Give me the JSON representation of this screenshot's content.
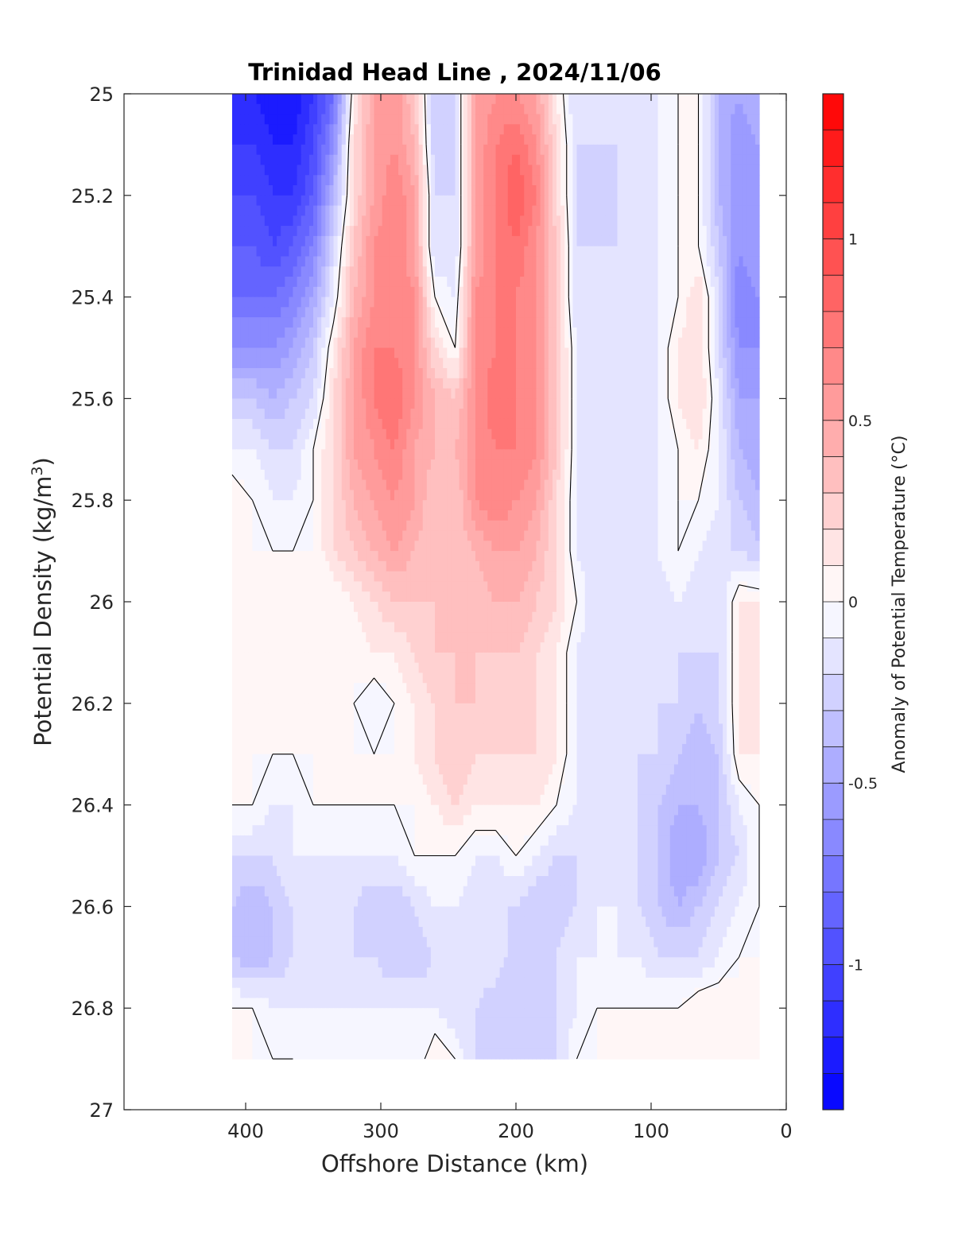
{
  "chart_data": {
    "type": "heatmap",
    "title": "Trinidad Head Line , 2024/11/06",
    "xlabel": "Offshore Distance (km)",
    "ylabel_main": "Potential Density (kg/m",
    "ylabel_sup": "3",
    "ylabel_close": ")",
    "colorbar_label": "Anomaly of Potential Temperature (°C)",
    "xlim": [
      490,
      0
    ],
    "ylim": [
      25,
      27
    ],
    "y_reversed": true,
    "x_ticks": [
      400,
      300,
      200,
      100,
      0
    ],
    "x_tick_labels": [
      "400",
      "300",
      "200",
      "100",
      "0"
    ],
    "y_ticks": [
      25,
      25.2,
      25.4,
      25.6,
      25.8,
      26,
      26.2,
      26.4,
      26.6,
      26.8,
      27
    ],
    "y_tick_labels": [
      "25",
      "25.2",
      "25.4",
      "25.6",
      "25.8",
      "26",
      "26.2",
      "26.4",
      "26.6",
      "26.8",
      "27"
    ],
    "colorbar_range": [
      -1.4,
      1.4
    ],
    "colorbar_step": 0.1,
    "colorbar_ticks": [
      1,
      0.5,
      0,
      -0.5,
      -1
    ],
    "colorbar_tick_labels": [
      "1",
      "0.5",
      "0",
      "-0.5",
      "-1"
    ],
    "colormap": {
      "negative": "#0000ff",
      "zero": "#ffffff",
      "positive": "#ff0000"
    },
    "zero_contour_color": "#000000",
    "data_extent": {
      "x": [
        410,
        20
      ],
      "y": [
        25,
        26.9
      ]
    },
    "x": [
      410,
      395,
      380,
      365,
      350,
      335,
      320,
      305,
      290,
      275,
      260,
      245,
      230,
      215,
      200,
      185,
      170,
      155,
      140,
      125,
      110,
      95,
      80,
      65,
      50,
      35,
      20
    ],
    "y": [
      25.0,
      25.1,
      25.2,
      25.3,
      25.4,
      25.5,
      25.6,
      25.7,
      25.8,
      25.9,
      26.0,
      26.1,
      26.2,
      26.3,
      26.4,
      26.5,
      26.6,
      26.7,
      26.8,
      26.9
    ],
    "z": [
      [
        -1.2,
        -1.2,
        -1.3,
        -1.3,
        -1.1,
        -0.8,
        0.1,
        0.5,
        0.6,
        0.3,
        -0.3,
        -0.2,
        0.5,
        0.6,
        0.6,
        0.5,
        0.1,
        -0.2,
        -0.2,
        -0.2,
        -0.2,
        -0.1,
        0.0,
        0.0,
        -0.4,
        -0.5,
        -0.4
      ],
      [
        -1.1,
        -1.1,
        -1.2,
        -1.2,
        -1.0,
        -0.6,
        0.2,
        0.5,
        0.6,
        0.4,
        -0.3,
        -0.2,
        0.5,
        0.7,
        0.8,
        0.6,
        0.2,
        -0.2,
        -0.2,
        -0.2,
        -0.2,
        -0.1,
        0.0,
        0.0,
        -0.4,
        -0.6,
        -0.5
      ],
      [
        -1.0,
        -1.0,
        -1.1,
        -1.1,
        -0.9,
        -0.4,
        0.2,
        0.5,
        0.7,
        0.5,
        -0.2,
        -0.2,
        0.5,
        0.7,
        0.9,
        0.7,
        0.2,
        -0.2,
        -0.3,
        -0.2,
        -0.2,
        -0.1,
        0.0,
        0.0,
        -0.4,
        -0.6,
        -0.5
      ],
      [
        -0.9,
        -0.9,
        -1.0,
        -0.9,
        -0.7,
        -0.2,
        0.3,
        0.6,
        0.7,
        0.5,
        -0.2,
        -0.2,
        0.5,
        0.7,
        0.8,
        0.6,
        0.3,
        -0.2,
        -0.2,
        -0.2,
        -0.2,
        -0.1,
        0.0,
        0.0,
        -0.3,
        -0.6,
        -0.5
      ],
      [
        -0.8,
        -0.8,
        -0.8,
        -0.7,
        -0.5,
        -0.1,
        0.4,
        0.6,
        0.7,
        0.6,
        0.0,
        -0.1,
        0.6,
        0.7,
        0.7,
        0.6,
        0.3,
        -0.2,
        -0.2,
        -0.2,
        -0.2,
        -0.1,
        0.0,
        0.2,
        -0.2,
        -0.7,
        -0.6
      ],
      [
        -0.6,
        -0.6,
        -0.6,
        -0.5,
        -0.3,
        0.1,
        0.5,
        0.7,
        0.7,
        0.6,
        0.2,
        0.0,
        0.6,
        0.7,
        0.7,
        0.6,
        0.3,
        -0.1,
        -0.2,
        -0.2,
        -0.2,
        -0.1,
        0.1,
        0.2,
        -0.2,
        -0.6,
        -0.6
      ],
      [
        -0.3,
        -0.3,
        -0.4,
        -0.3,
        -0.2,
        0.2,
        0.5,
        0.7,
        0.8,
        0.6,
        0.4,
        0.3,
        0.6,
        0.8,
        0.7,
        0.6,
        0.3,
        -0.1,
        -0.2,
        -0.2,
        -0.2,
        -0.1,
        0.1,
        0.2,
        -0.1,
        -0.5,
        -0.5
      ],
      [
        -0.1,
        -0.1,
        -0.2,
        -0.2,
        0.0,
        0.2,
        0.5,
        0.6,
        0.7,
        0.5,
        0.4,
        0.4,
        0.6,
        0.7,
        0.7,
        0.6,
        0.3,
        -0.1,
        -0.2,
        -0.2,
        -0.2,
        -0.1,
        0.0,
        0.1,
        -0.1,
        -0.4,
        -0.5
      ],
      [
        0.1,
        0.0,
        -0.1,
        -0.1,
        0.0,
        0.2,
        0.4,
        0.5,
        0.6,
        0.5,
        0.3,
        0.3,
        0.6,
        0.7,
        0.6,
        0.5,
        0.2,
        -0.1,
        -0.2,
        -0.2,
        -0.2,
        -0.1,
        0.0,
        0.0,
        -0.1,
        -0.3,
        -0.4
      ],
      [
        0.1,
        0.0,
        0.0,
        0.0,
        0.0,
        0.2,
        0.3,
        0.4,
        0.5,
        0.4,
        0.3,
        0.3,
        0.4,
        0.5,
        0.5,
        0.4,
        0.2,
        -0.1,
        -0.2,
        -0.2,
        -0.2,
        -0.1,
        0.0,
        -0.1,
        -0.2,
        -0.2,
        -0.3
      ],
      [
        0.1,
        0.0,
        0.0,
        0.0,
        0.0,
        0.0,
        0.1,
        0.2,
        0.3,
        0.3,
        0.3,
        0.3,
        0.3,
        0.4,
        0.4,
        0.3,
        0.2,
        0.0,
        -0.2,
        -0.2,
        -0.2,
        -0.2,
        -0.1,
        -0.2,
        -0.2,
        0.1,
        0.1
      ],
      [
        0.0,
        0.0,
        0.0,
        0.0,
        0.0,
        0.0,
        0.0,
        0.1,
        0.1,
        0.2,
        0.3,
        0.3,
        0.3,
        0.3,
        0.3,
        0.2,
        0.1,
        -0.1,
        -0.2,
        -0.2,
        -0.2,
        -0.2,
        -0.2,
        -0.2,
        -0.2,
        0.1,
        0.2
      ],
      [
        0.0,
        0.0,
        0.0,
        0.0,
        0.0,
        0.0,
        0.0,
        -0.1,
        0.0,
        0.1,
        0.2,
        0.3,
        0.3,
        0.2,
        0.2,
        0.2,
        0.1,
        -0.1,
        -0.2,
        -0.2,
        -0.2,
        -0.2,
        -0.2,
        -0.3,
        -0.2,
        0.1,
        0.1
      ],
      [
        0.0,
        0.0,
        0.0,
        0.0,
        0.0,
        0.0,
        0.0,
        0.0,
        0.0,
        0.1,
        0.2,
        0.3,
        0.2,
        0.2,
        0.2,
        0.2,
        0.1,
        -0.1,
        -0.2,
        -0.2,
        -0.2,
        -0.2,
        -0.3,
        -0.4,
        -0.3,
        0.1,
        0.1
      ],
      [
        0.0,
        0.0,
        -0.1,
        -0.1,
        0.0,
        0.0,
        0.0,
        0.0,
        0.0,
        0.0,
        0.1,
        0.2,
        0.1,
        0.1,
        0.1,
        0.1,
        0.0,
        -0.1,
        -0.1,
        -0.2,
        -0.2,
        -0.3,
        -0.4,
        -0.4,
        -0.3,
        -0.1,
        0.0
      ],
      [
        -0.2,
        -0.2,
        -0.2,
        -0.1,
        -0.1,
        -0.1,
        -0.1,
        -0.1,
        -0.1,
        0.0,
        0.0,
        0.0,
        -0.1,
        -0.1,
        0.0,
        -0.1,
        -0.2,
        -0.2,
        -0.1,
        -0.2,
        -0.2,
        -0.3,
        -0.5,
        -0.5,
        -0.3,
        -0.2,
        0.0
      ],
      [
        -0.3,
        -0.4,
        -0.3,
        -0.2,
        -0.2,
        -0.2,
        -0.2,
        -0.3,
        -0.3,
        -0.2,
        -0.1,
        -0.1,
        -0.2,
        -0.2,
        -0.2,
        -0.3,
        -0.3,
        -0.2,
        -0.1,
        -0.1,
        -0.2,
        -0.3,
        -0.4,
        -0.3,
        -0.2,
        -0.1,
        0.0
      ],
      [
        -0.3,
        -0.4,
        -0.3,
        -0.2,
        -0.2,
        -0.2,
        -0.2,
        -0.2,
        -0.3,
        -0.3,
        -0.2,
        -0.1,
        -0.1,
        -0.1,
        -0.3,
        -0.3,
        -0.2,
        -0.1,
        -0.1,
        -0.1,
        -0.1,
        -0.2,
        -0.2,
        -0.2,
        -0.1,
        0.0,
        0.0
      ],
      [
        0.0,
        0.0,
        -0.1,
        -0.1,
        -0.1,
        -0.1,
        -0.1,
        -0.1,
        -0.1,
        -0.1,
        -0.1,
        -0.2,
        -0.2,
        -0.3,
        -0.3,
        -0.3,
        -0.2,
        -0.1,
        0.0,
        0.0,
        0.0,
        0.0,
        0.0,
        0.1,
        0.1,
        0.0,
        0.0
      ],
      [
        0.1,
        0.0,
        0.0,
        0.0,
        -0.1,
        -0.1,
        -0.1,
        -0.1,
        -0.1,
        -0.1,
        0.1,
        0.0,
        -0.2,
        -0.2,
        -0.2,
        -0.2,
        -0.2,
        0.0,
        0.0,
        0.0,
        0.1,
        0.1,
        0.0,
        0.0,
        0.0,
        0.0,
        0.0
      ]
    ]
  }
}
